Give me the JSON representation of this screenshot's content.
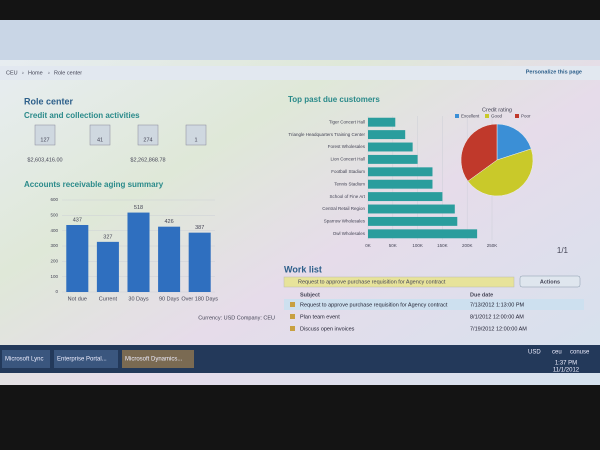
{
  "breadcrumb": [
    "CEU",
    "Home",
    "Role center"
  ],
  "personalize": "Personalize this page",
  "role_center": {
    "title": "Role center",
    "activities_title": "Credit and collection activities",
    "tiles": [
      {
        "count": 127,
        "amount": "$2,603,416.00"
      },
      {
        "count": 41
      },
      {
        "count": 274,
        "amount": "$2,262,868.78"
      },
      {
        "count": 1
      }
    ]
  },
  "chart_data": [
    {
      "type": "bar",
      "title": "Accounts receivable aging summary",
      "categories": [
        "Not due",
        "Current",
        "30 Days",
        "90 Days",
        "Over 180 Days"
      ],
      "values": [
        437,
        327,
        518,
        426,
        387
      ],
      "color": "#2f6fbf",
      "ylim": [
        0,
        600
      ],
      "yticks": [
        0,
        100,
        200,
        300,
        400,
        500,
        600
      ],
      "grid": true
    },
    {
      "type": "hbar",
      "title": "Top past due customers",
      "categories": [
        "Tiger Concert Hall",
        "Triangle Headquarters Training Center",
        "Forest Wholesales",
        "Lion Concert Hall",
        "Football Stadium",
        "Tennis Stadium",
        "School of Fine Art",
        "Central Retail Region",
        "Sparrow Wholesales",
        "Owl Wholesales"
      ],
      "values": [
        55000,
        75000,
        90000,
        100000,
        130000,
        130000,
        150000,
        175000,
        180000,
        220000
      ],
      "color": "#2a9d9d",
      "xlim": [
        0,
        250000
      ],
      "xticks": [
        {
          "value": 0,
          "label": "0K"
        },
        {
          "value": 50000,
          "label": "50K"
        },
        {
          "value": 100000,
          "label": "100K"
        },
        {
          "value": 150000,
          "label": "150K"
        },
        {
          "value": 200000,
          "label": "200K"
        },
        {
          "value": 250000,
          "label": "250K"
        }
      ],
      "grid": true
    },
    {
      "type": "pie",
      "title": "Credit rating",
      "categories": [
        "Excellent",
        "Good",
        "Poor"
      ],
      "values": [
        20,
        45,
        35
      ],
      "colors": [
        "#3b8fd6",
        "#c9c92a",
        "#c0392b"
      ]
    }
  ],
  "footer": "Currency: USD Company: CEU",
  "pager": "1/1",
  "work_list": {
    "title": "Work list",
    "banner": "Request to approve purchase requisition for Agency contract",
    "actions": "Actions",
    "columns": [
      "Subject",
      "Due date"
    ],
    "rows": [
      [
        "Request to approve purchase requisition for Agency contract",
        "7/13/2012 1:13:00 PM"
      ],
      [
        "Plan team event",
        "8/1/2012 12:00:00 AM"
      ],
      [
        "Discuss open invoices",
        "7/19/2012 12:00:00 AM"
      ]
    ]
  },
  "taskbar": {
    "apps": [
      "Microsoft Lync",
      "Enterprise Portal...",
      "Microsoft Dynamics..."
    ],
    "tray": [
      "USD",
      "ceu",
      "conuse"
    ],
    "time": "1:37 PM",
    "date": "11/1/2012"
  }
}
